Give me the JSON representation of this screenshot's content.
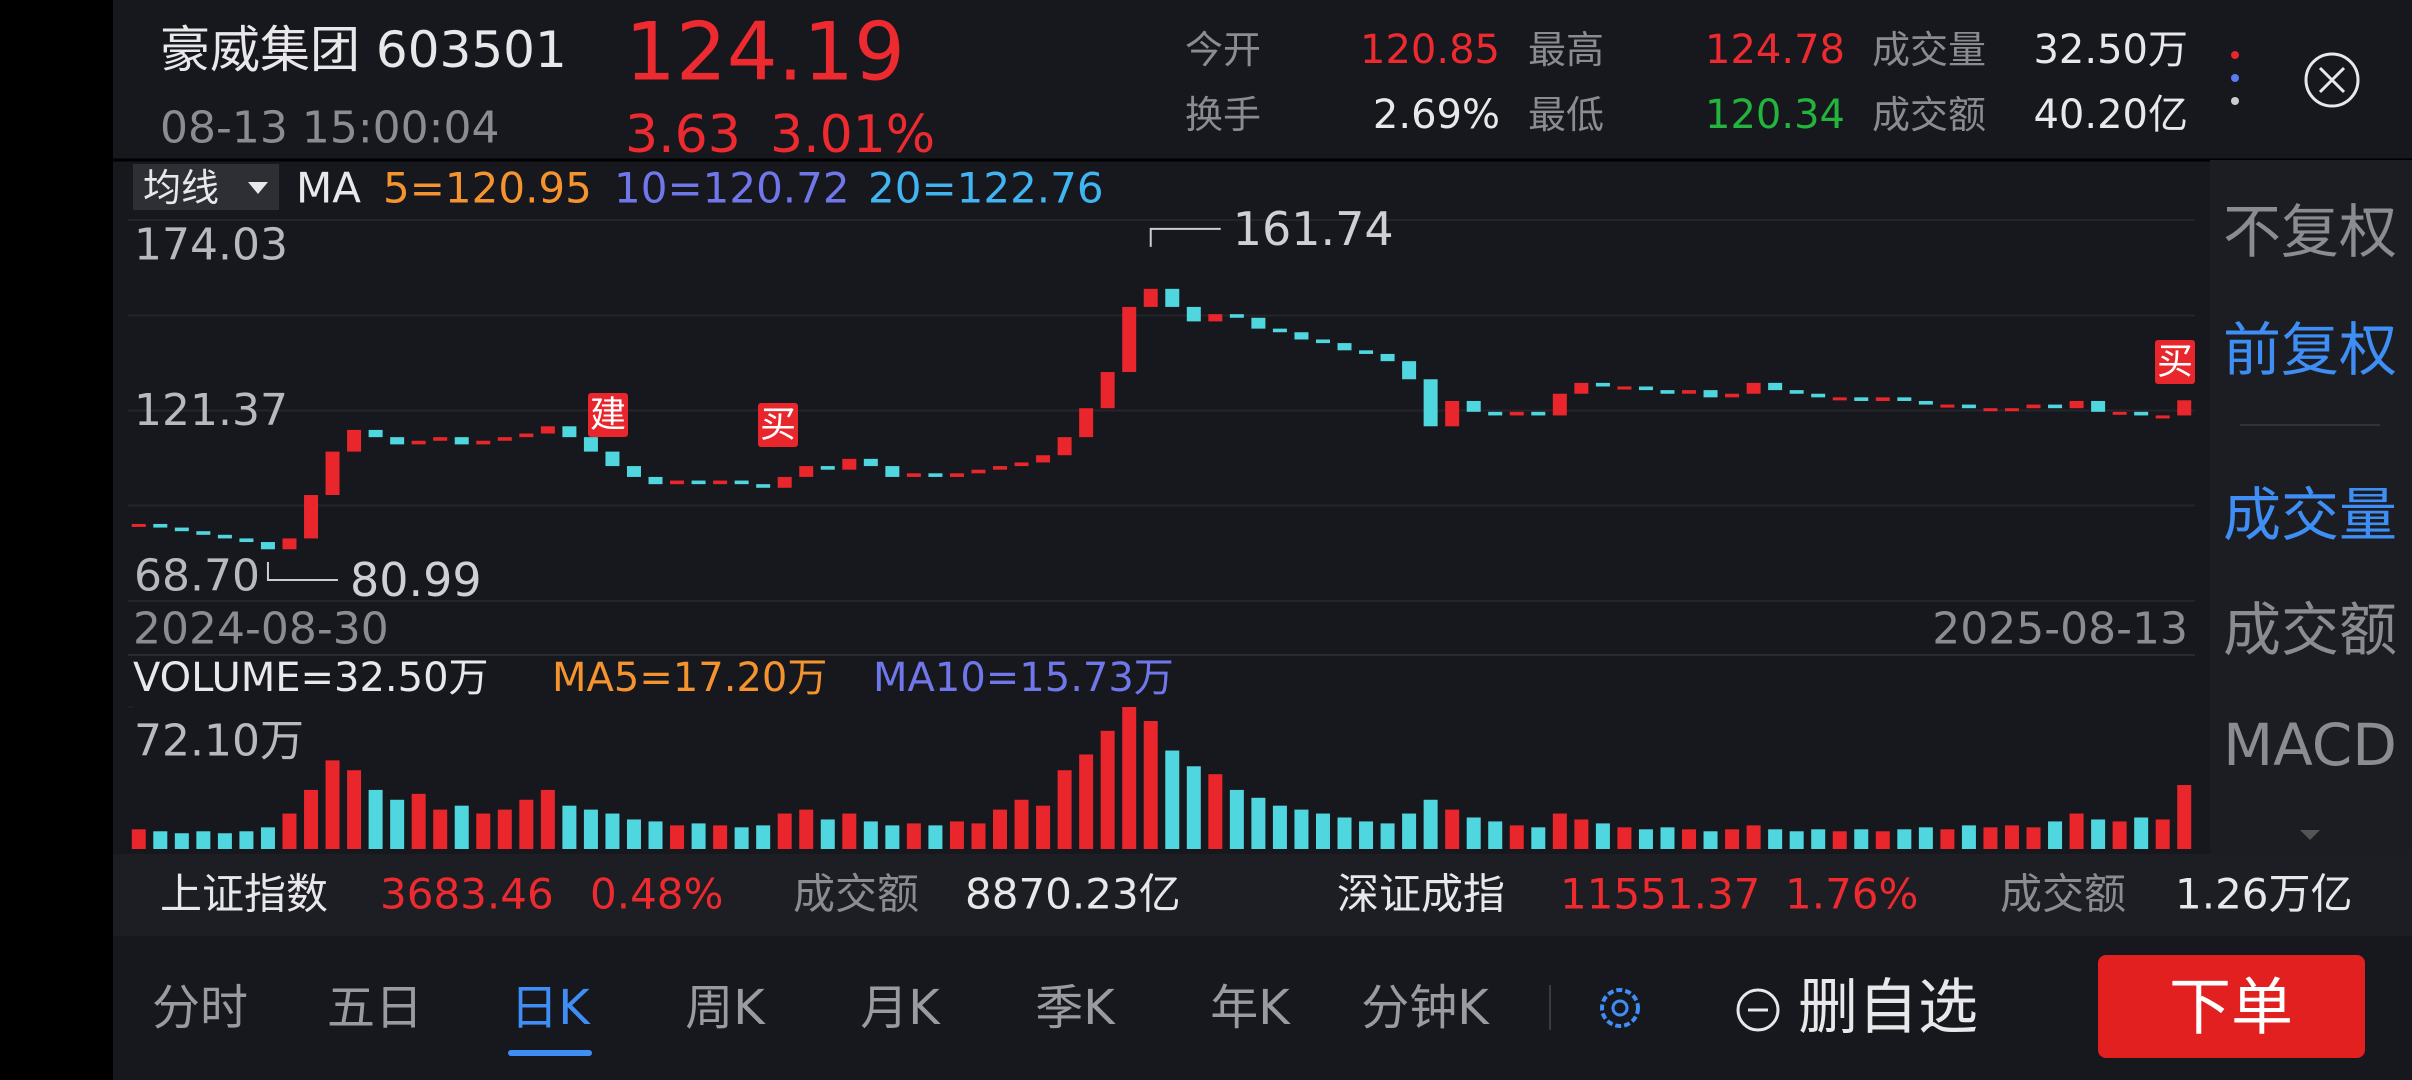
{
  "header": {
    "name_code": "豪威集团 603501",
    "price": "124.19",
    "time": "08-13 15:00:04",
    "change": "3.63",
    "change_pct": "3.01%"
  },
  "stats": [
    {
      "label": "今开",
      "value": "120.85"
    },
    {
      "label": "最高",
      "value": "124.78"
    },
    {
      "label": "成交量",
      "value": "32.50万"
    },
    {
      "label": "换手",
      "value": "2.69%"
    },
    {
      "label": "最低",
      "value": "120.34"
    },
    {
      "label": "成交额",
      "value": "40.20亿"
    }
  ],
  "ma_legend": {
    "selector": "均线",
    "ma": "MA",
    "ma5": "5=120.95",
    "ma10": "10=120.72",
    "ma20": "20=122.76"
  },
  "chart_data": {
    "type": "candlestick",
    "closes": [
      90,
      89,
      88,
      87,
      86,
      85,
      83,
      86,
      98,
      110,
      116,
      114,
      112,
      113,
      114,
      112,
      113,
      114,
      115,
      117,
      114,
      110,
      106,
      103,
      101,
      102,
      101,
      102,
      101,
      100,
      103,
      106,
      105,
      108,
      106,
      103,
      104,
      103,
      104,
      105,
      106,
      107,
      109,
      114,
      122,
      132,
      150,
      155,
      150,
      146,
      148,
      147,
      144,
      143,
      141,
      140,
      138,
      137,
      135,
      130,
      117,
      124,
      121,
      120,
      121,
      120,
      126,
      129,
      128,
      128,
      127,
      126,
      127,
      125,
      126,
      129,
      127,
      126,
      125,
      125,
      124,
      125,
      124,
      123,
      123,
      122,
      122,
      122,
      123,
      122,
      124,
      121,
      121,
      120,
      120,
      124.19
    ],
    "volumes": [
      10,
      9,
      8,
      9,
      8,
      9,
      11,
      18,
      30,
      45,
      40,
      30,
      25,
      28,
      20,
      22,
      18,
      20,
      25,
      30,
      22,
      20,
      18,
      15,
      14,
      12,
      13,
      12,
      11,
      12,
      18,
      20,
      15,
      18,
      14,
      12,
      13,
      12,
      14,
      13,
      20,
      25,
      22,
      40,
      48,
      60,
      72.1,
      65,
      50,
      42,
      38,
      30,
      26,
      22,
      20,
      18,
      16,
      14,
      13,
      18,
      25,
      20,
      16,
      14,
      12,
      11,
      18,
      15,
      13,
      11,
      10,
      11,
      10,
      9,
      10,
      12,
      10,
      9,
      10,
      9,
      10,
      9,
      10,
      11,
      10,
      12,
      11,
      12,
      11,
      14,
      18,
      15,
      14,
      16,
      15,
      32.5
    ],
    "ylim": [
      68.7,
      174.03
    ],
    "yticks": [
      174.03,
      121.37,
      {
        "value": 68.7,
        "label": "68.70"
      }
    ],
    "vlim": [
      0,
      72.1
    ],
    "vticks": [
      {
        "value": 72.1,
        "label": "72.10万"
      }
    ],
    "date_start": "2024-08-30",
    "date_end": "2025-08-13",
    "high_label": "161.74",
    "low_label": "80.99",
    "markers": [
      "建",
      "买",
      "买"
    ],
    "volume_legend": {
      "volume": "VOLUME=32.50万",
      "ma5": "MA5=17.20万",
      "ma10": "MA10=15.73万"
    },
    "colors": {
      "up": "#e8262b",
      "down": "#4fd6df"
    }
  },
  "sidebar": [
    "不复权",
    "前复权",
    "成交量",
    "成交额",
    "MACD"
  ],
  "index_bar": [
    {
      "name": "上证指数",
      "value": "3683.46",
      "pct": "0.48%",
      "amt_label": "成交额",
      "amt": "8870.23亿"
    },
    {
      "name": "深证成指",
      "value": "11551.37",
      "pct": "1.76%",
      "amt_label": "成交额",
      "amt": "1.26万亿"
    }
  ],
  "tabs": [
    "分时",
    "五日",
    "日K",
    "周K",
    "月K",
    "季K",
    "年K",
    "分钟K"
  ],
  "actions": {
    "remove": "删自选",
    "order": "下单"
  }
}
